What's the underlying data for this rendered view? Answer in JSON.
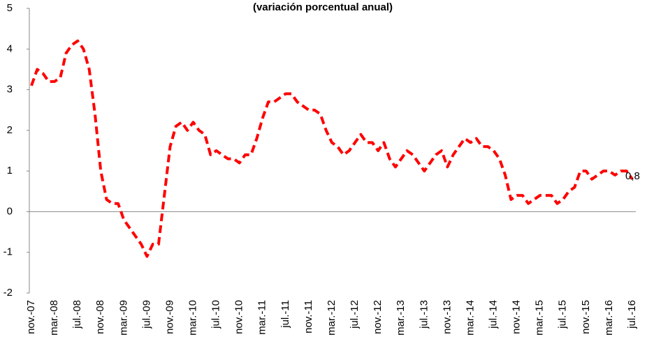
{
  "chart_data": {
    "type": "line",
    "title": "(variación porcentual anual)",
    "categories": [
      "nov.-07",
      null,
      null,
      null,
      "mar.-08",
      null,
      null,
      null,
      "jul.-08",
      null,
      null,
      null,
      "nov.-08",
      null,
      null,
      null,
      "mar.-09",
      null,
      null,
      null,
      "jul.-09",
      null,
      null,
      null,
      "nov.-09",
      null,
      null,
      null,
      "mar.-10",
      null,
      null,
      null,
      "jul.-10",
      null,
      null,
      null,
      "nov.-10",
      null,
      null,
      null,
      "mar.-11",
      null,
      null,
      null,
      "jul.-11",
      null,
      null,
      null,
      "nov.-11",
      null,
      null,
      null,
      "mar.-12",
      null,
      null,
      null,
      "jul.-12",
      null,
      null,
      null,
      "nov.-12",
      null,
      null,
      null,
      "mar.-13",
      null,
      null,
      null,
      "jul.-13",
      null,
      null,
      null,
      "nov.-13",
      null,
      null,
      null,
      "mar.-14",
      null,
      null,
      null,
      "jul.-14",
      null,
      null,
      null,
      "nov.-14",
      null,
      null,
      null,
      "mar.-15",
      null,
      null,
      null,
      "jul.-15",
      null,
      null,
      null,
      "nov.-15",
      null,
      null,
      null,
      "mar.-16",
      null,
      null,
      null,
      "jul.-16"
    ],
    "values": [
      3.1,
      3.5,
      3.4,
      3.2,
      3.2,
      3.3,
      3.9,
      4.1,
      4.2,
      4.0,
      3.5,
      2.4,
      1.0,
      0.3,
      0.2,
      0.2,
      -0.2,
      -0.4,
      -0.6,
      -0.8,
      -1.1,
      -0.8,
      -0.8,
      0.4,
      1.6,
      2.1,
      2.2,
      2.0,
      2.2,
      2.0,
      1.9,
      1.4,
      1.5,
      1.4,
      1.3,
      1.3,
      1.2,
      1.4,
      1.4,
      1.8,
      2.3,
      2.7,
      2.7,
      2.8,
      2.9,
      2.9,
      2.7,
      2.6,
      2.5,
      2.5,
      2.4,
      2.0,
      1.7,
      1.6,
      1.4,
      1.5,
      1.7,
      1.9,
      1.7,
      1.7,
      1.5,
      1.7,
      1.3,
      1.1,
      1.3,
      1.5,
      1.4,
      1.2,
      1.0,
      1.2,
      1.4,
      1.5,
      1.1,
      1.4,
      1.6,
      1.8,
      1.7,
      1.8,
      1.6,
      1.6,
      1.5,
      1.3,
      0.9,
      0.3,
      0.4,
      0.4,
      0.2,
      0.3,
      0.4,
      0.4,
      0.4,
      0.2,
      0.3,
      0.5,
      0.6,
      1.0,
      1.0,
      0.8,
      0.9,
      1.0,
      1.0,
      0.9,
      1.0,
      1.0,
      0.8
    ],
    "value_labels": [
      null,
      null,
      null,
      null,
      null,
      null,
      null,
      null,
      null,
      null,
      null,
      null,
      null,
      null,
      null,
      null,
      null,
      null,
      null,
      null,
      null,
      null,
      null,
      null,
      null,
      null,
      null,
      null,
      null,
      null,
      null,
      null,
      null,
      null,
      null,
      null,
      null,
      null,
      null,
      null,
      null,
      null,
      null,
      null,
      null,
      null,
      null,
      null,
      null,
      null,
      null,
      null,
      null,
      null,
      null,
      null,
      null,
      null,
      null,
      null,
      null,
      null,
      null,
      null,
      null,
      null,
      null,
      null,
      null,
      null,
      null,
      null,
      null,
      null,
      null,
      null,
      null,
      null,
      null,
      null,
      null,
      null,
      null,
      null,
      null,
      null,
      null,
      null,
      null,
      null,
      null,
      null,
      null,
      null,
      null,
      null,
      null,
      null,
      null,
      null,
      null,
      null,
      null,
      null,
      "0,8"
    ],
    "color": "#ff0000",
    "ylim": [
      -2,
      5
    ],
    "yticks": [
      -2,
      -1,
      0,
      1,
      2,
      3,
      4,
      5
    ]
  }
}
